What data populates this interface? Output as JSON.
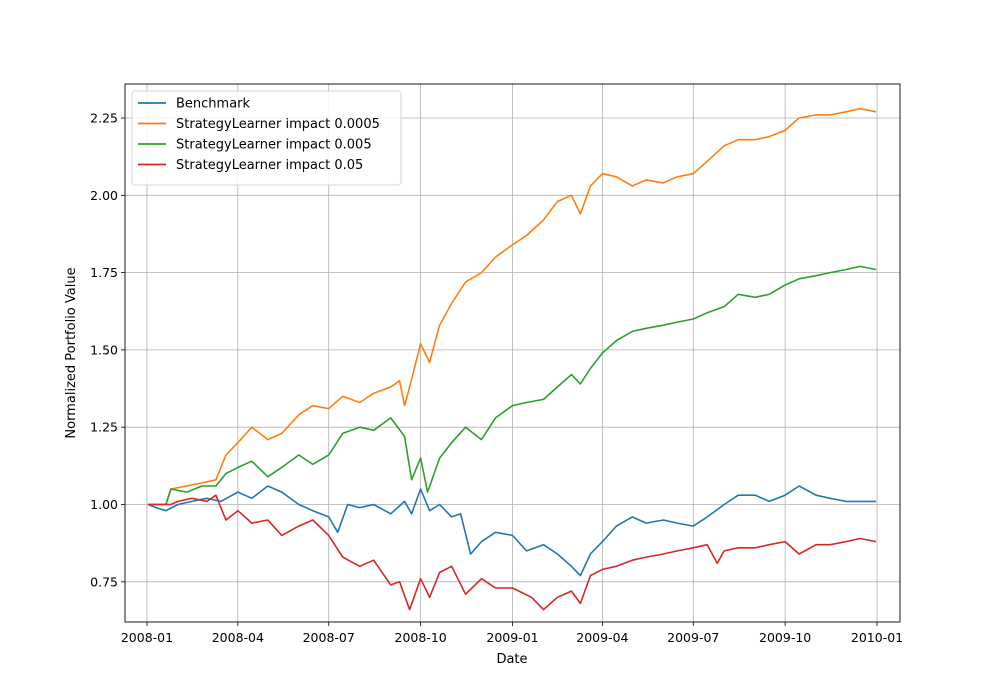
{
  "chart_data": {
    "type": "line",
    "title": "",
    "xlabel": "Date",
    "ylabel": "Normalized Portfolio Value",
    "xlim": [
      "2007-12-10",
      "2010-01-24"
    ],
    "ylim": [
      0.62,
      2.36
    ],
    "x_ticks": [
      "2008-01",
      "2008-04",
      "2008-07",
      "2008-10",
      "2009-01",
      "2009-04",
      "2009-07",
      "2009-10",
      "2010-01"
    ],
    "y_ticks": [
      0.75,
      1.0,
      1.25,
      1.5,
      1.75,
      2.0,
      2.25
    ],
    "y_tick_labels": [
      "0.75",
      "1.00",
      "1.25",
      "1.50",
      "1.75",
      "2.00",
      "2.25"
    ],
    "grid": true,
    "legend_position": "top-left",
    "series": [
      {
        "name": "Benchmark",
        "color": "#1f77b4",
        "points": [
          [
            "2008-01-02",
            1.0
          ],
          [
            "2008-01-10",
            0.99
          ],
          [
            "2008-01-20",
            0.98
          ],
          [
            "2008-02-01",
            1.0
          ],
          [
            "2008-02-15",
            1.01
          ],
          [
            "2008-03-01",
            1.02
          ],
          [
            "2008-03-15",
            1.01
          ],
          [
            "2008-04-01",
            1.04
          ],
          [
            "2008-04-15",
            1.02
          ],
          [
            "2008-05-01",
            1.06
          ],
          [
            "2008-05-15",
            1.04
          ],
          [
            "2008-06-01",
            1.0
          ],
          [
            "2008-06-15",
            0.98
          ],
          [
            "2008-07-01",
            0.96
          ],
          [
            "2008-07-10",
            0.91
          ],
          [
            "2008-07-20",
            1.0
          ],
          [
            "2008-08-01",
            0.99
          ],
          [
            "2008-08-15",
            1.0
          ],
          [
            "2008-09-01",
            0.97
          ],
          [
            "2008-09-15",
            1.01
          ],
          [
            "2008-09-22",
            0.97
          ],
          [
            "2008-10-01",
            1.05
          ],
          [
            "2008-10-10",
            0.98
          ],
          [
            "2008-10-20",
            1.0
          ],
          [
            "2008-11-01",
            0.96
          ],
          [
            "2008-11-10",
            0.97
          ],
          [
            "2008-11-20",
            0.84
          ],
          [
            "2008-12-01",
            0.88
          ],
          [
            "2008-12-15",
            0.91
          ],
          [
            "2009-01-01",
            0.9
          ],
          [
            "2009-01-15",
            0.85
          ],
          [
            "2009-02-01",
            0.87
          ],
          [
            "2009-02-15",
            0.84
          ],
          [
            "2009-03-01",
            0.8
          ],
          [
            "2009-03-10",
            0.77
          ],
          [
            "2009-03-20",
            0.84
          ],
          [
            "2009-04-01",
            0.88
          ],
          [
            "2009-04-15",
            0.93
          ],
          [
            "2009-05-01",
            0.96
          ],
          [
            "2009-05-15",
            0.94
          ],
          [
            "2009-06-01",
            0.95
          ],
          [
            "2009-06-15",
            0.94
          ],
          [
            "2009-07-01",
            0.93
          ],
          [
            "2009-07-15",
            0.96
          ],
          [
            "2009-08-01",
            1.0
          ],
          [
            "2009-08-15",
            1.03
          ],
          [
            "2009-09-01",
            1.03
          ],
          [
            "2009-09-15",
            1.01
          ],
          [
            "2009-10-01",
            1.03
          ],
          [
            "2009-10-15",
            1.06
          ],
          [
            "2009-11-01",
            1.03
          ],
          [
            "2009-11-15",
            1.02
          ],
          [
            "2009-12-01",
            1.01
          ],
          [
            "2009-12-15",
            1.01
          ],
          [
            "2009-12-31",
            1.01
          ]
        ]
      },
      {
        "name": "StrategyLearner impact 0.0005",
        "color": "#ff7f0e",
        "points": [
          [
            "2008-01-02",
            1.0
          ],
          [
            "2008-01-20",
            1.0
          ],
          [
            "2008-01-25",
            1.05
          ],
          [
            "2008-02-10",
            1.06
          ],
          [
            "2008-02-25",
            1.07
          ],
          [
            "2008-03-10",
            1.08
          ],
          [
            "2008-03-20",
            1.16
          ],
          [
            "2008-04-01",
            1.2
          ],
          [
            "2008-04-15",
            1.25
          ],
          [
            "2008-05-01",
            1.21
          ],
          [
            "2008-05-15",
            1.23
          ],
          [
            "2008-06-01",
            1.29
          ],
          [
            "2008-06-15",
            1.32
          ],
          [
            "2008-07-01",
            1.31
          ],
          [
            "2008-07-15",
            1.35
          ],
          [
            "2008-08-01",
            1.33
          ],
          [
            "2008-08-15",
            1.36
          ],
          [
            "2008-09-01",
            1.38
          ],
          [
            "2008-09-10",
            1.4
          ],
          [
            "2008-09-15",
            1.32
          ],
          [
            "2008-09-20",
            1.38
          ],
          [
            "2008-10-01",
            1.52
          ],
          [
            "2008-10-10",
            1.46
          ],
          [
            "2008-10-20",
            1.58
          ],
          [
            "2008-11-01",
            1.65
          ],
          [
            "2008-11-15",
            1.72
          ],
          [
            "2008-12-01",
            1.75
          ],
          [
            "2008-12-15",
            1.8
          ],
          [
            "2009-01-01",
            1.84
          ],
          [
            "2009-01-15",
            1.87
          ],
          [
            "2009-02-01",
            1.92
          ],
          [
            "2009-02-15",
            1.98
          ],
          [
            "2009-03-01",
            2.0
          ],
          [
            "2009-03-10",
            1.94
          ],
          [
            "2009-03-20",
            2.03
          ],
          [
            "2009-04-01",
            2.07
          ],
          [
            "2009-04-15",
            2.06
          ],
          [
            "2009-05-01",
            2.03
          ],
          [
            "2009-05-15",
            2.05
          ],
          [
            "2009-06-01",
            2.04
          ],
          [
            "2009-06-15",
            2.06
          ],
          [
            "2009-07-01",
            2.07
          ],
          [
            "2009-07-15",
            2.11
          ],
          [
            "2009-08-01",
            2.16
          ],
          [
            "2009-08-15",
            2.18
          ],
          [
            "2009-09-01",
            2.18
          ],
          [
            "2009-09-15",
            2.19
          ],
          [
            "2009-10-01",
            2.21
          ],
          [
            "2009-10-15",
            2.25
          ],
          [
            "2009-11-01",
            2.26
          ],
          [
            "2009-11-15",
            2.26
          ],
          [
            "2009-12-01",
            2.27
          ],
          [
            "2009-12-15",
            2.28
          ],
          [
            "2009-12-31",
            2.27
          ]
        ]
      },
      {
        "name": "StrategyLearner impact 0.005",
        "color": "#2ca02c",
        "points": [
          [
            "2008-01-02",
            1.0
          ],
          [
            "2008-01-20",
            1.0
          ],
          [
            "2008-01-25",
            1.05
          ],
          [
            "2008-02-10",
            1.04
          ],
          [
            "2008-02-25",
            1.06
          ],
          [
            "2008-03-10",
            1.06
          ],
          [
            "2008-03-20",
            1.1
          ],
          [
            "2008-04-01",
            1.12
          ],
          [
            "2008-04-15",
            1.14
          ],
          [
            "2008-05-01",
            1.09
          ],
          [
            "2008-05-15",
            1.12
          ],
          [
            "2008-06-01",
            1.16
          ],
          [
            "2008-06-15",
            1.13
          ],
          [
            "2008-07-01",
            1.16
          ],
          [
            "2008-07-15",
            1.23
          ],
          [
            "2008-08-01",
            1.25
          ],
          [
            "2008-08-15",
            1.24
          ],
          [
            "2008-09-01",
            1.28
          ],
          [
            "2008-09-15",
            1.22
          ],
          [
            "2008-09-22",
            1.08
          ],
          [
            "2008-10-01",
            1.15
          ],
          [
            "2008-10-08",
            1.04
          ],
          [
            "2008-10-20",
            1.15
          ],
          [
            "2008-11-01",
            1.2
          ],
          [
            "2008-11-15",
            1.25
          ],
          [
            "2008-12-01",
            1.21
          ],
          [
            "2008-12-15",
            1.28
          ],
          [
            "2009-01-01",
            1.32
          ],
          [
            "2009-01-15",
            1.33
          ],
          [
            "2009-02-01",
            1.34
          ],
          [
            "2009-02-15",
            1.38
          ],
          [
            "2009-03-01",
            1.42
          ],
          [
            "2009-03-10",
            1.39
          ],
          [
            "2009-03-20",
            1.44
          ],
          [
            "2009-04-01",
            1.49
          ],
          [
            "2009-04-15",
            1.53
          ],
          [
            "2009-05-01",
            1.56
          ],
          [
            "2009-05-15",
            1.57
          ],
          [
            "2009-06-01",
            1.58
          ],
          [
            "2009-06-15",
            1.59
          ],
          [
            "2009-07-01",
            1.6
          ],
          [
            "2009-07-15",
            1.62
          ],
          [
            "2009-08-01",
            1.64
          ],
          [
            "2009-08-15",
            1.68
          ],
          [
            "2009-09-01",
            1.67
          ],
          [
            "2009-09-15",
            1.68
          ],
          [
            "2009-10-01",
            1.71
          ],
          [
            "2009-10-15",
            1.73
          ],
          [
            "2009-11-01",
            1.74
          ],
          [
            "2009-11-15",
            1.75
          ],
          [
            "2009-12-01",
            1.76
          ],
          [
            "2009-12-15",
            1.77
          ],
          [
            "2009-12-31",
            1.76
          ]
        ]
      },
      {
        "name": "StrategyLearner impact 0.05",
        "color": "#d62728",
        "points": [
          [
            "2008-01-02",
            1.0
          ],
          [
            "2008-01-25",
            1.0
          ],
          [
            "2008-02-01",
            1.01
          ],
          [
            "2008-02-15",
            1.02
          ],
          [
            "2008-03-01",
            1.01
          ],
          [
            "2008-03-10",
            1.03
          ],
          [
            "2008-03-20",
            0.95
          ],
          [
            "2008-04-01",
            0.98
          ],
          [
            "2008-04-15",
            0.94
          ],
          [
            "2008-05-01",
            0.95
          ],
          [
            "2008-05-15",
            0.9
          ],
          [
            "2008-06-01",
            0.93
          ],
          [
            "2008-06-15",
            0.95
          ],
          [
            "2008-07-01",
            0.9
          ],
          [
            "2008-07-15",
            0.83
          ],
          [
            "2008-08-01",
            0.8
          ],
          [
            "2008-08-15",
            0.82
          ],
          [
            "2008-09-01",
            0.74
          ],
          [
            "2008-09-10",
            0.75
          ],
          [
            "2008-09-20",
            0.66
          ],
          [
            "2008-10-01",
            0.76
          ],
          [
            "2008-10-10",
            0.7
          ],
          [
            "2008-10-20",
            0.78
          ],
          [
            "2008-11-01",
            0.8
          ],
          [
            "2008-11-15",
            0.71
          ],
          [
            "2008-12-01",
            0.76
          ],
          [
            "2008-12-15",
            0.73
          ],
          [
            "2009-01-01",
            0.73
          ],
          [
            "2009-01-20",
            0.7
          ],
          [
            "2009-02-01",
            0.66
          ],
          [
            "2009-02-15",
            0.7
          ],
          [
            "2009-03-01",
            0.72
          ],
          [
            "2009-03-10",
            0.68
          ],
          [
            "2009-03-20",
            0.77
          ],
          [
            "2009-04-01",
            0.79
          ],
          [
            "2009-04-15",
            0.8
          ],
          [
            "2009-05-01",
            0.82
          ],
          [
            "2009-05-15",
            0.83
          ],
          [
            "2009-06-01",
            0.84
          ],
          [
            "2009-06-15",
            0.85
          ],
          [
            "2009-07-01",
            0.86
          ],
          [
            "2009-07-15",
            0.87
          ],
          [
            "2009-07-25",
            0.81
          ],
          [
            "2009-08-01",
            0.85
          ],
          [
            "2009-08-15",
            0.86
          ],
          [
            "2009-09-01",
            0.86
          ],
          [
            "2009-09-15",
            0.87
          ],
          [
            "2009-10-01",
            0.88
          ],
          [
            "2009-10-15",
            0.84
          ],
          [
            "2009-11-01",
            0.87
          ],
          [
            "2009-11-15",
            0.87
          ],
          [
            "2009-12-01",
            0.88
          ],
          [
            "2009-12-15",
            0.89
          ],
          [
            "2009-12-31",
            0.88
          ]
        ]
      }
    ]
  }
}
